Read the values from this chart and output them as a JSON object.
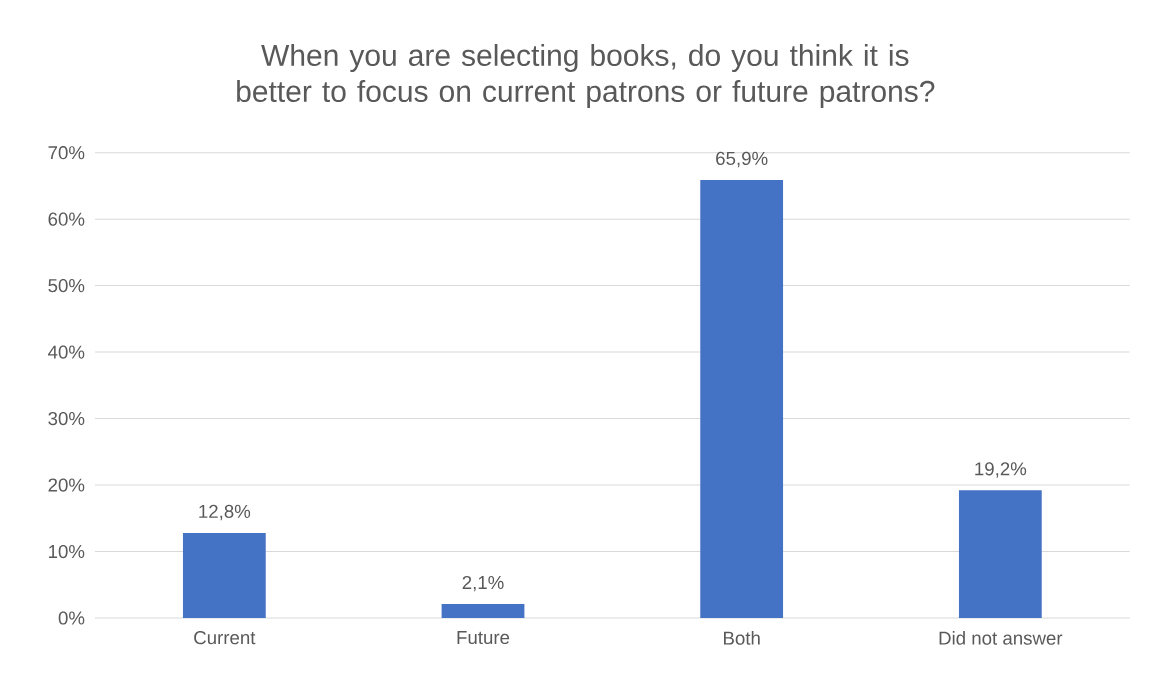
{
  "chart_data": {
    "type": "bar",
    "title": "When you are selecting books, do you think it is better to focus on current patrons or future patrons?",
    "categories": [
      "Current",
      "Future",
      "Both",
      "Did not answer"
    ],
    "values": [
      12.8,
      2.1,
      65.9,
      19.2
    ],
    "value_labels": [
      "12,8%",
      "2,1%",
      "65,9%",
      "19,2%"
    ],
    "color": "#4472c4",
    "ylim": [
      0,
      70
    ],
    "yticks": [
      {
        "value": 0,
        "label": "0%"
      },
      {
        "value": 10,
        "label": "10%"
      },
      {
        "value": 20,
        "label": "20%"
      },
      {
        "value": 30,
        "label": "30%"
      },
      {
        "value": 40,
        "label": "40%"
      },
      {
        "value": 50,
        "label": "50%"
      },
      {
        "value": 60,
        "label": "60%"
      },
      {
        "value": 70,
        "label": "70%"
      }
    ],
    "grid": "y"
  }
}
